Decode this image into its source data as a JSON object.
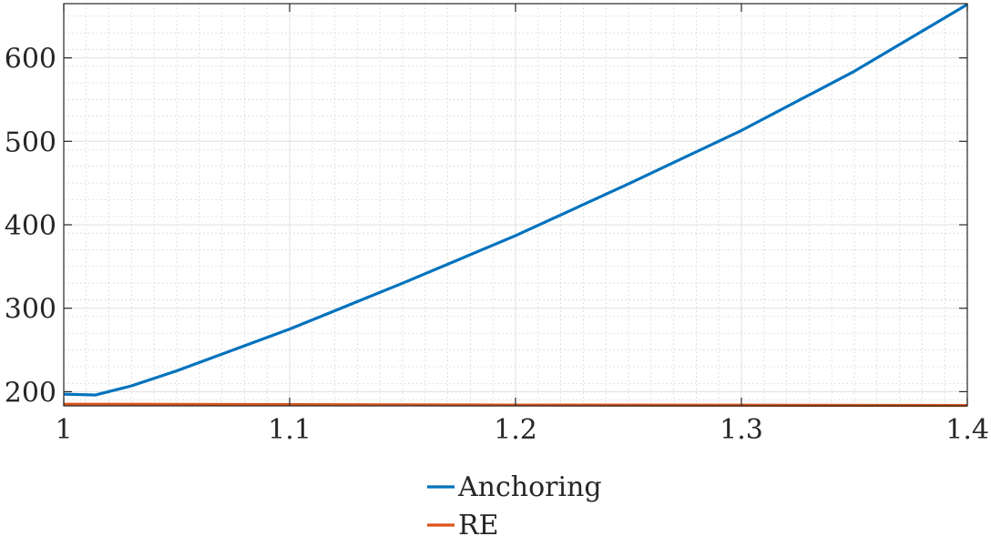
{
  "chart_data": {
    "type": "line",
    "title": "",
    "xlabel": "",
    "ylabel": "",
    "xlim": [
      1,
      1.4
    ],
    "ylim": [
      183,
      665
    ],
    "xticks": [
      1,
      1.1,
      1.2,
      1.3,
      1.4
    ],
    "xtick_labels": [
      "1",
      "1.1",
      "1.2",
      "1.3",
      "1.4"
    ],
    "yticks": [
      200,
      300,
      400,
      500,
      600
    ],
    "ytick_labels": [
      "200",
      "300",
      "400",
      "500",
      "600"
    ],
    "grid": "major and minor",
    "legend_position": "bottom-center",
    "series": [
      {
        "name": "Anchoring",
        "color": "#0072BD",
        "x": [
          1,
          1.014,
          1.03,
          1.05,
          1.1,
          1.15,
          1.2,
          1.25,
          1.3,
          1.35,
          1.4
        ],
        "y": [
          197,
          196,
          207,
          225,
          275,
          330,
          387,
          449,
          513,
          584,
          664
        ]
      },
      {
        "name": "RE",
        "color": "#D95319",
        "x": [
          1,
          1.1,
          1.2,
          1.3,
          1.4
        ],
        "y": [
          185,
          184.5,
          184,
          183.8,
          183.5
        ]
      }
    ]
  }
}
